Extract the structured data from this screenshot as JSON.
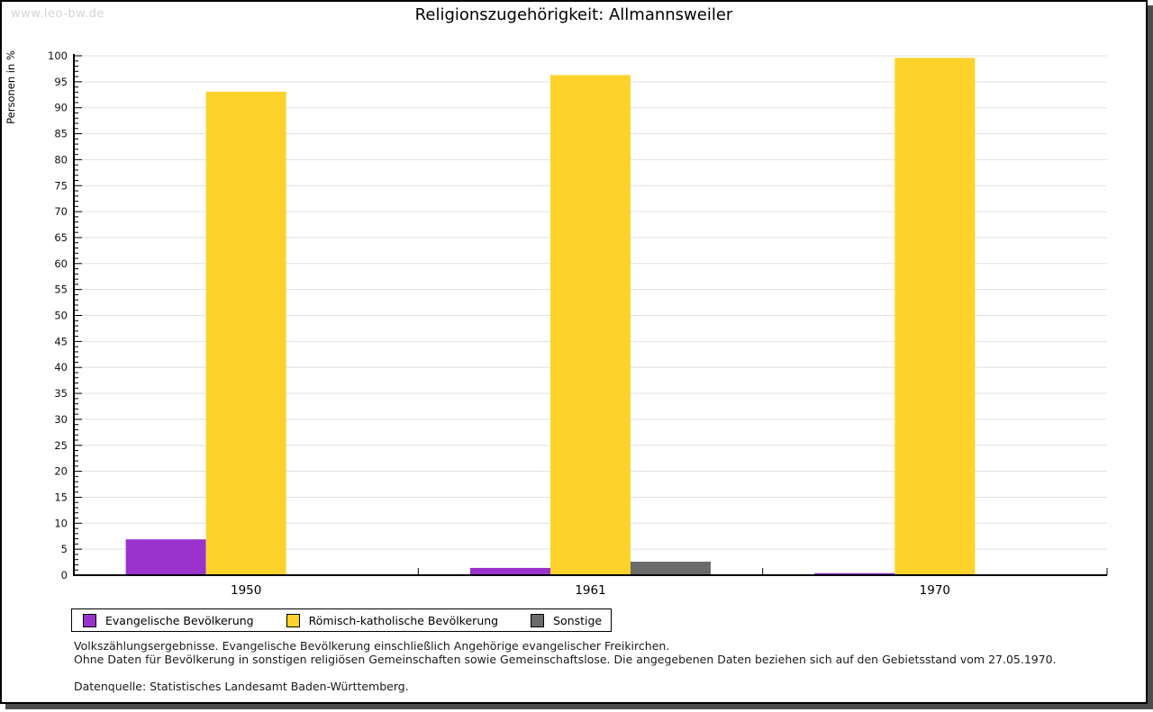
{
  "watermark": "www.leo-bw.de",
  "chart_data": {
    "type": "bar",
    "title": "Religionszugehörigkeit: Allmannsweiler",
    "xlabel": "",
    "ylabel": "Personen in %",
    "categories": [
      "1950",
      "1961",
      "1970"
    ],
    "series": [
      {
        "name": "Evangelische Bevölkerung",
        "color": "#9933CC",
        "values": [
          6.9,
          1.4,
          0.4
        ]
      },
      {
        "name": "Römisch-katholische Bevölkerung",
        "color": "#FDD32B",
        "values": [
          93.1,
          96.3,
          99.6
        ]
      },
      {
        "name": "Sonstige",
        "color": "#6B6B6B",
        "values": [
          0,
          2.6,
          0
        ]
      }
    ],
    "ylim": [
      0,
      100
    ],
    "y_major_step": 5,
    "y_minor_step": 1,
    "grid": true,
    "legend_position": "bottom-left",
    "gridline_color": "#e0e0e0",
    "axis_color": "#000000"
  },
  "notes": [
    "Volkszählungsergebnisse. Evangelische Bevölkerung einschließlich Angehörige evangelischer Freikirchen.",
    "Ohne Daten für Bevölkerung in sonstigen religiösen Gemeinschaften sowie Gemeinschaftslose. Die angegebenen Daten beziehen sich auf den Gebietsstand vom 27.05.1970."
  ],
  "source": "Datenquelle: Statistisches Landesamt Baden-Württemberg."
}
